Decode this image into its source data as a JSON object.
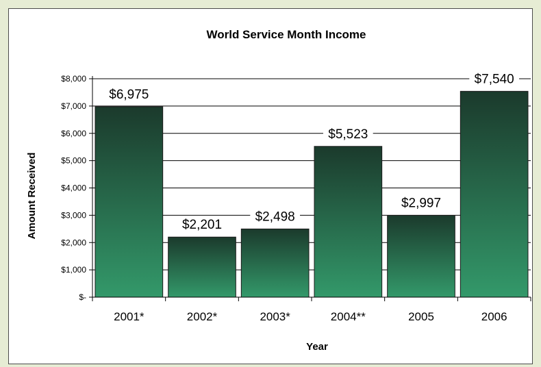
{
  "chart_data": {
    "type": "bar",
    "title": "World Service Month Income",
    "xlabel": "Year",
    "ylabel": "Amount Received",
    "categories": [
      "2001*",
      "2002*",
      "2003*",
      "2004**",
      "2005",
      "2006"
    ],
    "values": [
      6975,
      2201,
      2498,
      5523,
      2997,
      7540
    ],
    "value_labels": [
      "$6,975",
      "$2,201",
      "$2,498",
      "$5,523",
      "$2,997",
      "$7,540"
    ],
    "ylim": [
      0,
      8000
    ],
    "yticks": [
      0,
      1000,
      2000,
      3000,
      4000,
      5000,
      6000,
      7000,
      8000
    ],
    "ytick_labels": [
      "$-",
      "$1,000",
      "$2,000",
      "$3,000",
      "$4,000",
      "$5,000",
      "$6,000",
      "$7,000",
      "$8,000"
    ],
    "grid": true,
    "legend": false,
    "colors": {
      "bar_top": "#1b3a2c",
      "bar_bottom": "#33996a",
      "background": "#e6ecd4",
      "plot_bg": "#ffffff",
      "gridline": "#000000"
    }
  }
}
